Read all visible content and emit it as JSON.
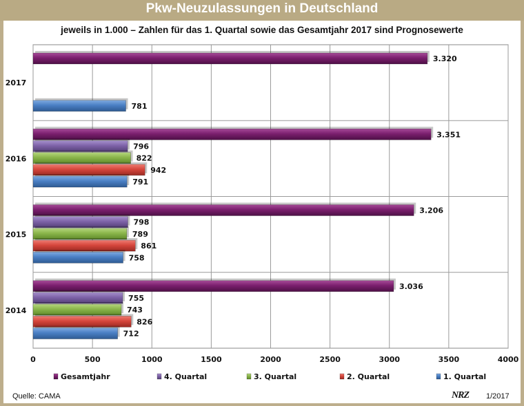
{
  "title": "Pkw-Neuzulassungen in Deutschland",
  "subtitle": "jeweils in 1.000 – Zahlen für das 1. Quartal sowie das Gesamtjahr 2017 sind Prognosewerte",
  "source": "Quelle: CAMA",
  "brand": "NRZ",
  "edition": "1/2017",
  "colors": {
    "Gesamtjahr": "#7b1f6e",
    "4. Quartal": "#7e62a8",
    "3. Quartal": "#8ab54a",
    "2. Quartal": "#d6463c",
    "1. Quartal": "#4a7fc4"
  },
  "chart_data": {
    "type": "bar",
    "orientation": "horizontal",
    "title": "Pkw-Neuzulassungen in Deutschland",
    "xlabel": "",
    "ylabel": "",
    "xlim": [
      0,
      4000
    ],
    "xticks": [
      0,
      500,
      1000,
      1500,
      2000,
      2500,
      3000,
      3500,
      4000
    ],
    "grid": true,
    "legend_position": "bottom",
    "categories": [
      "2017",
      "2016",
      "2015",
      "2014"
    ],
    "series": [
      {
        "name": "Gesamtjahr",
        "values": [
          3320,
          3351,
          3206,
          3036
        ],
        "labels": [
          "3.320",
          "3.351",
          "3.206",
          "3.036"
        ]
      },
      {
        "name": "4. Quartal",
        "values": [
          null,
          796,
          798,
          755
        ],
        "labels": [
          "",
          "796",
          "798",
          "755"
        ]
      },
      {
        "name": "3. Quartal",
        "values": [
          null,
          822,
          789,
          743
        ],
        "labels": [
          "",
          "822",
          "789",
          "743"
        ]
      },
      {
        "name": "2. Quartal",
        "values": [
          null,
          942,
          861,
          826
        ],
        "labels": [
          "",
          "942",
          "861",
          "826"
        ]
      },
      {
        "name": "1. Quartal",
        "values": [
          781,
          791,
          758,
          712
        ],
        "labels": [
          "781",
          "791",
          "758",
          "712"
        ]
      }
    ]
  }
}
